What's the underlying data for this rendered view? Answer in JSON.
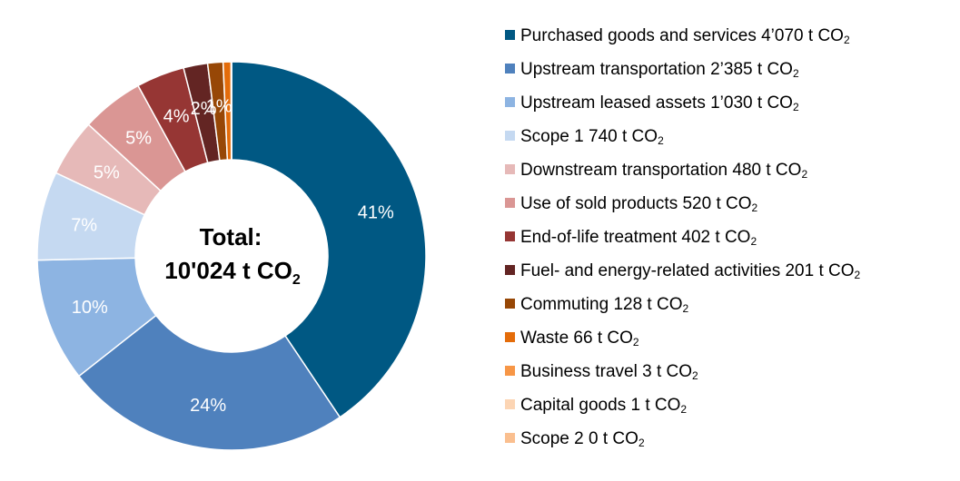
{
  "center": {
    "line1": "Total:",
    "line2_main": "10'024 t CO",
    "line2_sub": "2"
  },
  "chart_data": {
    "type": "pie",
    "variant": "donut",
    "title": "Total: 10'024 t CO2",
    "total": 10024,
    "unit": "t CO2",
    "slices": [
      {
        "name": "Purchased goods and services",
        "value": 4070,
        "value_text": "4’070",
        "percent_label": "41%",
        "color": "#005883"
      },
      {
        "name": "Upstream transportation",
        "value": 2385,
        "value_text": "2’385",
        "percent_label": "24%",
        "color": "#4f81bd"
      },
      {
        "name": "Upstream leased assets",
        "value": 1030,
        "value_text": "1’030",
        "percent_label": "10%",
        "color": "#8db4e2"
      },
      {
        "name": "Scope 1",
        "value": 740,
        "value_text": "740",
        "percent_label": "7%",
        "color": "#c5d9f1"
      },
      {
        "name": "Downstream transportation",
        "value": 480,
        "value_text": "480",
        "percent_label": "5%",
        "color": "#e6b9b8"
      },
      {
        "name": "Use of sold products",
        "value": 520,
        "value_text": "520",
        "percent_label": "5%",
        "color": "#da9694"
      },
      {
        "name": "End-of-life treatment",
        "value": 402,
        "value_text": "402",
        "percent_label": "4%",
        "color": "#963634"
      },
      {
        "name": "Fuel- and energy-related activities",
        "value": 201,
        "value_text": "201",
        "percent_label": "2%",
        "color": "#632523"
      },
      {
        "name": "Commuting",
        "value": 128,
        "value_text": "128",
        "percent_label": "1%",
        "color": "#974706"
      },
      {
        "name": "Waste",
        "value": 66,
        "value_text": "66",
        "percent_label": "",
        "color": "#e46c0a"
      },
      {
        "name": "Business travel",
        "value": 3,
        "value_text": "3",
        "percent_label": "",
        "color": "#f79646"
      },
      {
        "name": "Capital goods",
        "value": 1,
        "value_text": "1",
        "percent_label": "",
        "color": "#fcd5b4"
      },
      {
        "name": "Scope 2",
        "value": 0,
        "value_text": "0",
        "percent_label": "",
        "color": "#fabf8f"
      }
    ],
    "legend_position": "right",
    "legend_unit_main": "t CO",
    "legend_unit_sub": "2"
  }
}
